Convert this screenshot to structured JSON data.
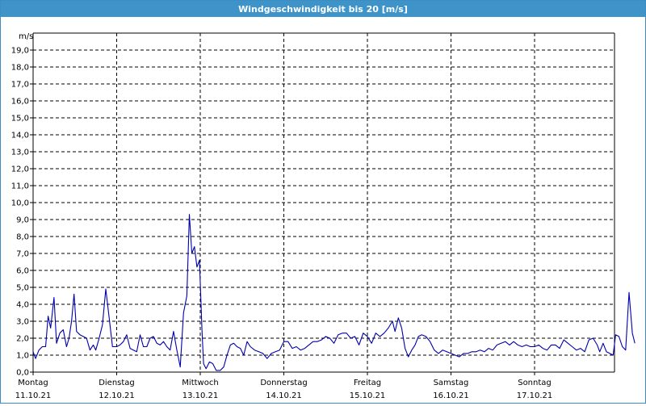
{
  "window": {
    "title": "Windgeschwindigkeit bis 20 [m/s]",
    "title_bg": "#3e93c8"
  },
  "chart_data": {
    "type": "line",
    "title": "Windgeschwindigkeit bis 20 [m/s]",
    "ylabel": "m/s",
    "xlabel": "",
    "ylim": [
      0,
      20
    ],
    "y_ticks": [
      "0,0",
      "1,0",
      "2,0",
      "3,0",
      "4,0",
      "5,0",
      "6,0",
      "7,0",
      "8,0",
      "9,0",
      "10,0",
      "11,0",
      "12,0",
      "13,0",
      "14,0",
      "15,0",
      "16,0",
      "17,0",
      "18,0",
      "19,0"
    ],
    "xlim": [
      0,
      7.0
    ],
    "days": [
      {
        "day": "Montag",
        "date": "11.10.21"
      },
      {
        "day": "Dienstag",
        "date": "12.10.21"
      },
      {
        "day": "Mittwoch",
        "date": "13.10.21"
      },
      {
        "day": "Donnerstag",
        "date": "14.10.21"
      },
      {
        "day": "Freitag",
        "date": "15.10.21"
      },
      {
        "day": "Samstag",
        "date": "16.10.21"
      },
      {
        "day": "Sonntag",
        "date": "17.10.21"
      }
    ],
    "grid": true,
    "line_color": "#0000aa",
    "series": [
      {
        "points": [
          [
            0.0,
            1.2
          ],
          [
            0.03,
            0.8
          ],
          [
            0.07,
            1.3
          ],
          [
            0.11,
            1.5
          ],
          [
            0.15,
            1.5
          ],
          [
            0.18,
            3.3
          ],
          [
            0.21,
            2.6
          ],
          [
            0.25,
            4.4
          ],
          [
            0.28,
            1.7
          ],
          [
            0.32,
            2.3
          ],
          [
            0.36,
            2.5
          ],
          [
            0.4,
            1.5
          ],
          [
            0.43,
            2.0
          ],
          [
            0.46,
            3.0
          ],
          [
            0.49,
            4.6
          ],
          [
            0.52,
            2.4
          ],
          [
            0.56,
            2.2
          ],
          [
            0.6,
            2.1
          ],
          [
            0.64,
            2.0
          ],
          [
            0.68,
            1.3
          ],
          [
            0.72,
            1.6
          ],
          [
            0.75,
            1.3
          ],
          [
            0.79,
            2.0
          ],
          [
            0.83,
            2.8
          ],
          [
            0.87,
            4.9
          ],
          [
            0.91,
            3.2
          ],
          [
            0.95,
            1.5
          ],
          [
            1.0,
            1.5
          ],
          [
            1.04,
            1.6
          ],
          [
            1.08,
            1.8
          ],
          [
            1.12,
            2.2
          ],
          [
            1.16,
            1.4
          ],
          [
            1.2,
            1.3
          ],
          [
            1.24,
            1.2
          ],
          [
            1.28,
            2.2
          ],
          [
            1.32,
            1.5
          ],
          [
            1.36,
            1.5
          ],
          [
            1.4,
            2.0
          ],
          [
            1.44,
            2.1
          ],
          [
            1.48,
            1.7
          ],
          [
            1.52,
            1.6
          ],
          [
            1.56,
            1.8
          ],
          [
            1.6,
            1.5
          ],
          [
            1.64,
            1.3
          ],
          [
            1.68,
            2.4
          ],
          [
            1.72,
            1.3
          ],
          [
            1.76,
            0.3
          ],
          [
            1.8,
            3.5
          ],
          [
            1.84,
            4.5
          ],
          [
            1.87,
            9.3
          ],
          [
            1.9,
            7.0
          ],
          [
            1.93,
            7.4
          ],
          [
            1.96,
            6.2
          ],
          [
            1.99,
            6.6
          ],
          [
            2.02,
            2.5
          ],
          [
            2.04,
            0.5
          ],
          [
            2.07,
            0.2
          ],
          [
            2.11,
            0.6
          ],
          [
            2.15,
            0.5
          ],
          [
            2.19,
            0.1
          ],
          [
            2.24,
            0.1
          ],
          [
            2.28,
            0.3
          ],
          [
            2.32,
            1.0
          ],
          [
            2.36,
            1.6
          ],
          [
            2.4,
            1.7
          ],
          [
            2.44,
            1.5
          ],
          [
            2.48,
            1.4
          ],
          [
            2.52,
            1.0
          ],
          [
            2.56,
            1.8
          ],
          [
            2.6,
            1.5
          ],
          [
            2.65,
            1.3
          ],
          [
            2.7,
            1.2
          ],
          [
            2.75,
            1.1
          ],
          [
            2.8,
            0.8
          ],
          [
            2.85,
            1.1
          ],
          [
            2.9,
            1.2
          ],
          [
            2.95,
            1.3
          ],
          [
            3.0,
            1.8
          ],
          [
            3.05,
            1.8
          ],
          [
            3.1,
            1.4
          ],
          [
            3.15,
            1.5
          ],
          [
            3.2,
            1.3
          ],
          [
            3.25,
            1.4
          ],
          [
            3.3,
            1.6
          ],
          [
            3.35,
            1.8
          ],
          [
            3.4,
            1.8
          ],
          [
            3.45,
            1.9
          ],
          [
            3.5,
            2.1
          ],
          [
            3.55,
            2.0
          ],
          [
            3.6,
            1.7
          ],
          [
            3.65,
            2.2
          ],
          [
            3.7,
            2.3
          ],
          [
            3.75,
            2.3
          ],
          [
            3.8,
            2.0
          ],
          [
            3.85,
            2.1
          ],
          [
            3.9,
            1.6
          ],
          [
            3.95,
            2.3
          ],
          [
            4.0,
            2.1
          ],
          [
            4.05,
            1.7
          ],
          [
            4.1,
            2.3
          ],
          [
            4.15,
            2.1
          ],
          [
            4.2,
            2.3
          ],
          [
            4.25,
            2.6
          ],
          [
            4.3,
            3.0
          ],
          [
            4.33,
            2.4
          ],
          [
            4.37,
            3.2
          ],
          [
            4.41,
            2.6
          ],
          [
            4.45,
            1.4
          ],
          [
            4.49,
            0.9
          ],
          [
            4.53,
            1.3
          ],
          [
            4.57,
            1.6
          ],
          [
            4.61,
            2.1
          ],
          [
            4.65,
            2.2
          ],
          [
            4.7,
            2.1
          ],
          [
            4.75,
            1.8
          ],
          [
            4.8,
            1.3
          ],
          [
            4.85,
            1.1
          ],
          [
            4.9,
            1.3
          ],
          [
            4.95,
            1.2
          ],
          [
            5.0,
            1.1
          ],
          [
            5.05,
            1.0
          ],
          [
            5.1,
            0.9
          ],
          [
            5.15,
            1.1
          ],
          [
            5.2,
            1.1
          ],
          [
            5.25,
            1.2
          ],
          [
            5.3,
            1.2
          ],
          [
            5.35,
            1.3
          ],
          [
            5.4,
            1.2
          ],
          [
            5.45,
            1.4
          ],
          [
            5.5,
            1.3
          ],
          [
            5.55,
            1.6
          ],
          [
            5.6,
            1.7
          ],
          [
            5.65,
            1.8
          ],
          [
            5.7,
            1.6
          ],
          [
            5.75,
            1.8
          ],
          [
            5.8,
            1.6
          ],
          [
            5.85,
            1.5
          ],
          [
            5.9,
            1.6
          ],
          [
            5.95,
            1.5
          ],
          [
            6.0,
            1.5
          ],
          [
            6.05,
            1.6
          ],
          [
            6.1,
            1.4
          ],
          [
            6.15,
            1.3
          ],
          [
            6.2,
            1.6
          ],
          [
            6.25,
            1.6
          ],
          [
            6.3,
            1.4
          ],
          [
            6.35,
            1.9
          ],
          [
            6.4,
            1.7
          ],
          [
            6.45,
            1.5
          ],
          [
            6.5,
            1.3
          ],
          [
            6.55,
            1.4
          ],
          [
            6.6,
            1.2
          ],
          [
            6.65,
            1.9
          ],
          [
            6.7,
            2.0
          ],
          [
            6.75,
            1.6
          ],
          [
            6.78,
            1.2
          ],
          [
            6.82,
            1.7
          ],
          [
            6.86,
            1.2
          ],
          [
            6.9,
            1.1
          ],
          [
            6.94,
            1.0
          ],
          [
            6.97,
            2.2
          ],
          [
            7.01,
            2.1
          ],
          [
            7.05,
            1.5
          ],
          [
            7.09,
            1.3
          ],
          [
            7.13,
            4.7
          ],
          [
            7.17,
            2.3
          ],
          [
            7.2,
            1.7
          ]
        ]
      }
    ]
  }
}
